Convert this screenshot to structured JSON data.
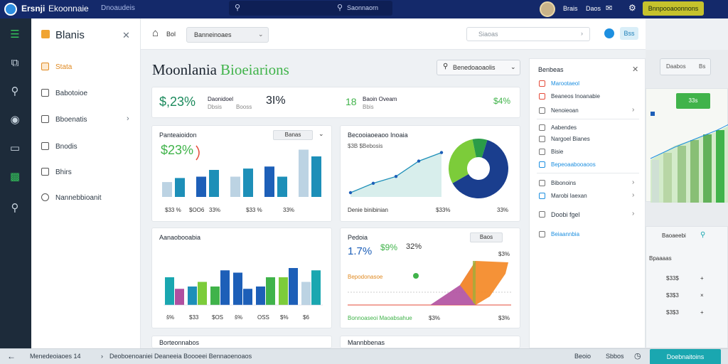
{
  "topbar": {
    "brand": "Ersnji",
    "brand_secondary": "Ekoonnaie",
    "crumb": "Dnoaudeis",
    "search_placeholder": "Saonnaorn",
    "item_1": "Brais",
    "item_2": "Daos",
    "upgrade_label": "Bnnpooaoonnons"
  },
  "sidebar": {
    "title": "Blanis",
    "items": [
      {
        "label": "Stata",
        "icon": "chart-icon",
        "active": true
      },
      {
        "label": "Babotoioe",
        "icon": "grid-icon",
        "active": false
      },
      {
        "label": "Bboenatis",
        "icon": "document-icon",
        "active": false,
        "has_children": true
      },
      {
        "label": "Bnodis",
        "icon": "folder-icon",
        "active": false
      },
      {
        "label": "Bhirs",
        "icon": "archive-icon",
        "active": false
      },
      {
        "label": "Nannebbioanit",
        "icon": "search-icon",
        "active": false
      }
    ]
  },
  "toolbar": {
    "home_label": "Bol",
    "select_value": "Banneinoaes",
    "search_placeholder": "Siaoas",
    "button_label": "Bss"
  },
  "page": {
    "title": "Moonlania",
    "title_accent": "Bioeiarions",
    "period_dropdown": "Benedoaoaolis"
  },
  "kpi": {
    "value_1": "$,23%",
    "label_1a": "Daonidoel",
    "label_1b": "Dbsis",
    "label_1c": "Booss",
    "value_2": "3I%",
    "value_3": "18",
    "label_3a": "Baoin Oveam",
    "label_3b": "Bbis",
    "value_4": "$4%"
  },
  "cards": {
    "card1": {
      "title": "Panteaioidon",
      "dropdown": "Banas",
      "big_value": "$23%",
      "footer": [
        "$33 %",
        "$OO6",
        "33%"
      ]
    },
    "card2": {
      "title": "Becooiaoeaoo Inoaia",
      "legend": "$3B $Bebosis",
      "footer_label": "Denie binibinian",
      "footer_vals": [
        "$33%",
        "33%"
      ]
    },
    "card3": {
      "title": "Aanaobooabia",
      "x_labels": [
        "ŝ%",
        "$33",
        "$OS",
        "ŝ%",
        "OSS",
        "$%",
        "$6"
      ]
    },
    "card4": {
      "title": "Pedoia",
      "dropdown": "Baos",
      "val_a": "1.7%",
      "val_b": "$9%",
      "val_c": "32%",
      "side_val": "$3%",
      "legend_1": "Bepodonasoe",
      "footer_label": "Bonnoaseoi Maoabsahue",
      "footer_vals": [
        "$3%",
        "$3%"
      ]
    },
    "card5": {
      "title": "Borteonnabos"
    },
    "card6": {
      "title": "Mannbbenas"
    }
  },
  "right_panel": {
    "title": "Benbeas",
    "items": [
      {
        "label": "Marootaeol",
        "color": "#e54b3a",
        "link": true
      },
      {
        "label": "Beaneos Inoanabie",
        "color": "#e54b3a",
        "link": false
      },
      {
        "label": "Nenoieoan",
        "color": "#777777",
        "link": false,
        "chev": true
      },
      {
        "label": "Aabendes",
        "color": "#777777",
        "link": false
      },
      {
        "label": "Nargoel Bianes",
        "color": "#777777",
        "link": false
      },
      {
        "label": "Bisie",
        "color": "#777777",
        "link": false
      },
      {
        "label": "Bepeoaabooaoos",
        "color": "#1d8fe0",
        "link": true
      },
      {
        "label": "Bibonoins",
        "color": "#777777",
        "link": false,
        "chev": true
      },
      {
        "label": "Marobi Iaexan",
        "color": "#1d8fe0",
        "link": false,
        "chev": true
      },
      {
        "label": "Doobi fgel",
        "color": "#777777",
        "link": false,
        "chev": true
      },
      {
        "label": "Beiaannbia",
        "color": "#1d8fe0",
        "link": true
      }
    ]
  },
  "far_right": {
    "box_left": "Daabos",
    "box_right": "Bs",
    "badge": "33s",
    "search_label": "Baoaeebi",
    "rows": [
      "Bpaaaas",
      "$33$",
      "$3$3",
      "$3$3"
    ]
  },
  "bottombar": {
    "left_text": "Menedeoiaoes 14",
    "middle_text": "Deoboenoaniei Deaneeia Boooeei Bennaoenoaos",
    "right_1": "Beoio",
    "right_2": "Sbbos",
    "cta_label": "Doebnaitoins"
  },
  "colors": {
    "topbar": "#14296a",
    "rail": "#1d2b3a",
    "accent_green": "#40b34a",
    "accent_blue": "#1d8fe0",
    "accent_orange": "#e08a22",
    "cta": "#1aa7b0"
  },
  "chart_data": [
    {
      "type": "bar",
      "title": "Panteaioidon",
      "series": [
        {
          "values": [
            22,
            30,
            30,
            45,
            70
          ]
        },
        {
          "values": [
            28,
            40,
            42,
            30,
            60
          ]
        }
      ]
    },
    {
      "type": "line",
      "title": "Becooiaoeaoo Inoaia",
      "x": [
        1,
        2,
        3,
        4,
        5
      ],
      "values": [
        5,
        16,
        24,
        42,
        52
      ]
    },
    {
      "type": "pie",
      "title": "Becooiaoeaoo Inoaia",
      "values": [
        62,
        30,
        8
      ]
    },
    {
      "type": "bar",
      "title": "Aanaobooabia",
      "categories": [
        "ŝ%",
        "$33",
        "$OS",
        "ŝ%",
        "OSS",
        "$%",
        "$6"
      ],
      "series": [
        {
          "values": [
            60,
            40,
            40,
            70,
            40,
            60,
            50
          ]
        },
        {
          "values": [
            35,
            50,
            75,
            35,
            60,
            80,
            75
          ]
        }
      ]
    },
    {
      "type": "area",
      "title": "Pedoia",
      "values": [
        0,
        0,
        0,
        0,
        55,
        70
      ]
    }
  ]
}
